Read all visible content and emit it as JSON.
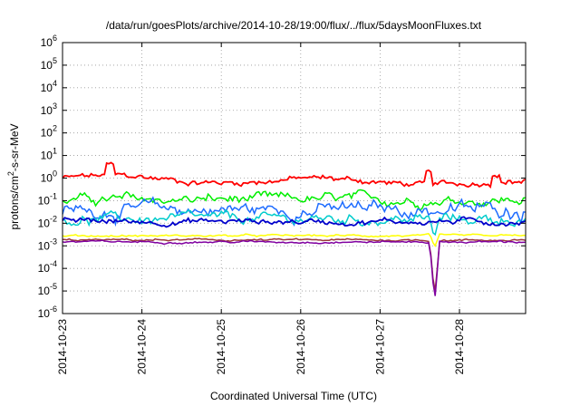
{
  "chart_data": {
    "type": "line",
    "title": "/data/run/goesPlots/archive/2014-10-28/19:00/flux/../flux/5daysMoonFluxes.txt",
    "xlabel": "Coordinated Universal Time (UTC)",
    "ylabel": {
      "base": "protons/cm",
      "sup": "2",
      "rest": "-s-sr-MeV"
    },
    "yscale": "log",
    "ylim": [
      1e-06,
      1000000.0
    ],
    "y_ticks": [
      {
        "value": 1e-06,
        "base": "10",
        "exp": "-6"
      },
      {
        "value": 1e-05,
        "base": "10",
        "exp": "-5"
      },
      {
        "value": 0.0001,
        "base": "10",
        "exp": "-4"
      },
      {
        "value": 0.001,
        "base": "10",
        "exp": "-3"
      },
      {
        "value": 0.01,
        "base": "10",
        "exp": "-2"
      },
      {
        "value": 0.1,
        "base": "10",
        "exp": "-1"
      },
      {
        "value": 1,
        "base": "10",
        "exp": "0"
      },
      {
        "value": 10,
        "base": "10",
        "exp": "1"
      },
      {
        "value": 100,
        "base": "10",
        "exp": "2"
      },
      {
        "value": 1000,
        "base": "10",
        "exp": "3"
      },
      {
        "value": 10000,
        "base": "10",
        "exp": "4"
      },
      {
        "value": 100000,
        "base": "10",
        "exp": "5"
      },
      {
        "value": 1000000,
        "base": "10",
        "exp": "6"
      }
    ],
    "xlim": [
      "2014-10-23",
      "2014-10-28T20:00"
    ],
    "x_ticks": [
      "2014-10-23",
      "2014-10-24",
      "2014-10-25",
      "2014-10-26",
      "2014-10-27",
      "2014-10-28"
    ],
    "grid": true,
    "series": [
      {
        "color": "#ff0000",
        "base": 1.0,
        "noise": 0.15,
        "spike": 0.0
      },
      {
        "color": "#00ee00",
        "base": 0.11,
        "noise": 0.25,
        "spike": 0.0
      },
      {
        "color": "#1e6cff",
        "base": 0.04,
        "noise": 0.35,
        "spike": 0.0
      },
      {
        "color": "#00cccc",
        "base": 0.015,
        "noise": 0.25,
        "spike": 0.9
      },
      {
        "color": "#0000cc",
        "base": 0.012,
        "noise": 0.15,
        "spike": 0.0
      },
      {
        "color": "#ffff00",
        "base": 0.0028,
        "noise": 0.05,
        "spike": 0.6
      },
      {
        "color": "#9b3a3a",
        "base": 0.0018,
        "noise": 0.05,
        "spike": 2.5
      },
      {
        "color": "#8000a0",
        "base": 0.0015,
        "noise": 0.05,
        "spike": 2.7
      }
    ]
  }
}
